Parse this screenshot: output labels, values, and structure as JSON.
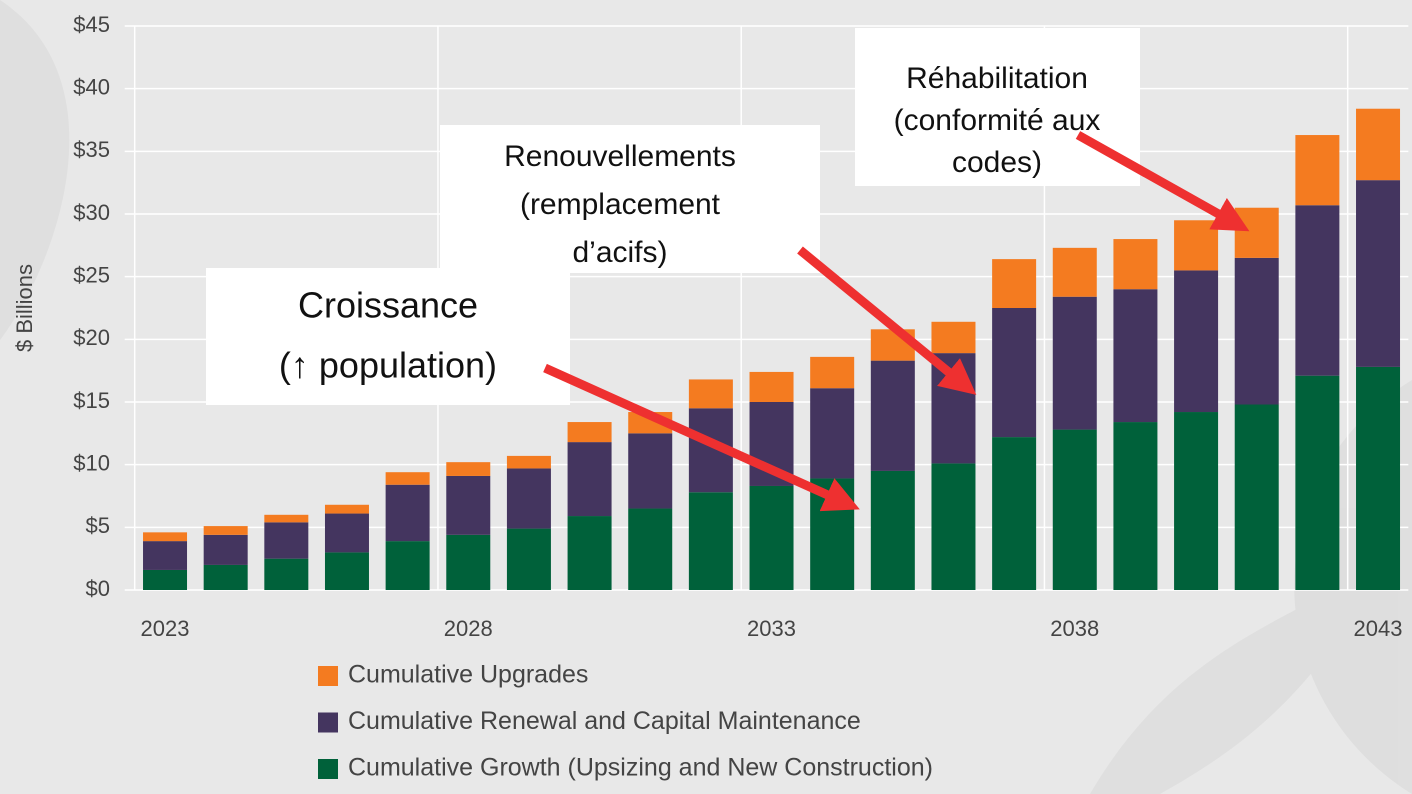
{
  "chart_data": {
    "type": "stacked-bar",
    "y_label": "$ Billions",
    "categories": [
      "2023",
      null,
      null,
      null,
      null,
      "2028",
      null,
      null,
      null,
      null,
      "2033",
      null,
      null,
      null,
      null,
      "2038",
      null,
      null,
      null,
      null,
      "2043"
    ],
    "series": [
      {
        "name": "Cumulative Growth (Upsizing and New Construction)",
        "color": "#00613a",
        "values": [
          1.6,
          2.0,
          2.5,
          3.0,
          3.9,
          4.4,
          4.9,
          5.9,
          6.5,
          7.8,
          8.3,
          8.9,
          9.5,
          10.1,
          12.2,
          12.8,
          13.4,
          14.2,
          14.8,
          17.1,
          17.8
        ]
      },
      {
        "name": "Cumulative Renewal and Capital Maintenance",
        "color": "#44355f",
        "values": [
          2.3,
          2.4,
          2.9,
          3.1,
          4.5,
          4.7,
          4.8,
          5.9,
          6.0,
          6.7,
          6.7,
          7.2,
          8.8,
          8.8,
          10.3,
          10.6,
          10.6,
          11.3,
          11.7,
          13.6,
          14.9
        ]
      },
      {
        "name": "Cumulative Upgrades",
        "color": "#f47b20",
        "values": [
          0.7,
          0.7,
          0.6,
          0.7,
          1.0,
          1.1,
          1.0,
          1.6,
          1.7,
          2.3,
          2.4,
          2.5,
          2.5,
          2.5,
          3.9,
          3.9,
          4.0,
          4.0,
          4.0,
          5.6,
          5.7
        ]
      }
    ],
    "ylim": [
      0,
      45
    ],
    "yticks": [
      {
        "value": 0,
        "label": "$0"
      },
      {
        "value": 5,
        "label": "$5"
      },
      {
        "value": 10,
        "label": "$10"
      },
      {
        "value": 15,
        "label": "$15"
      },
      {
        "value": 20,
        "label": "$20"
      },
      {
        "value": 25,
        "label": "$25"
      },
      {
        "value": 30,
        "label": "$30"
      },
      {
        "value": 35,
        "label": "$35"
      },
      {
        "value": 40,
        "label": "$40"
      },
      {
        "value": 45,
        "label": "$45"
      }
    ],
    "grid": true,
    "annotations": [
      {
        "lines": [
          "Croissance",
          "(↑ population)"
        ]
      },
      {
        "lines": [
          "Renouvellements",
          "(remplacement",
          "d’acifs)"
        ]
      },
      {
        "lines": [
          "Réhabilitation",
          "(conformité aux",
          "codes)"
        ]
      }
    ]
  }
}
